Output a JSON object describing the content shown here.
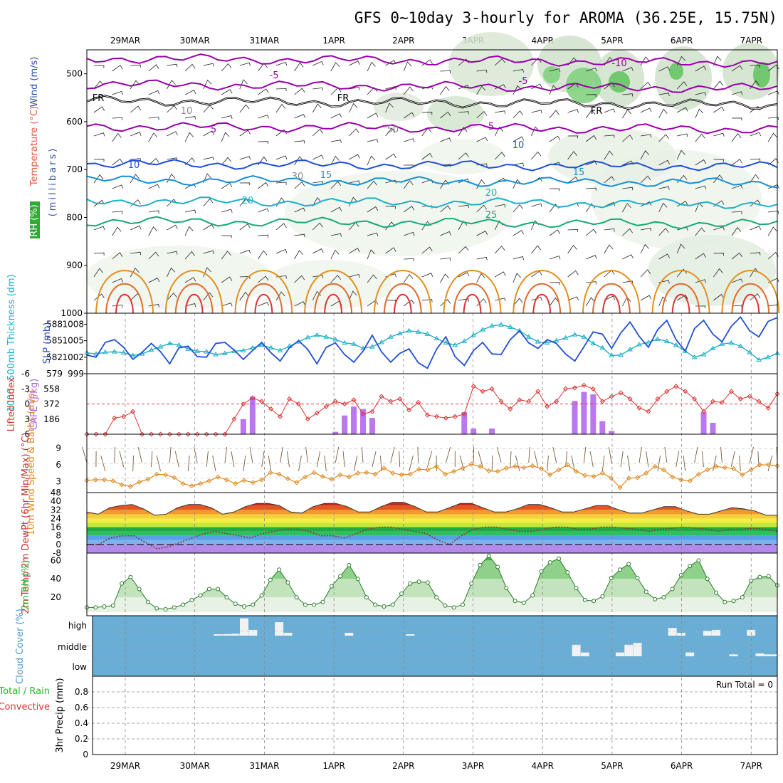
{
  "title": "GFS 0~10day 3-hourly for AROMA (36.25E, 15.75N)",
  "dates": [
    "29MAR",
    "30MAR",
    "31MAR",
    "1APR",
    "2APR",
    "3APR",
    "4APR",
    "5APR",
    "6APR",
    "7APR"
  ],
  "colors": {
    "purple": "#9900aa",
    "blue": "#1f4fd6",
    "cyan": "#1fb0c8",
    "teal": "#18a878",
    "orange": "#e09020",
    "red": "#dd3333",
    "green": "#22bb22",
    "cloud": "#6aadd5",
    "cape_bar": "#bb77ee",
    "wind_speed": "#e08a20",
    "rh_green": "#3dbb3d"
  },
  "chart_data": [
    {
      "type": "contour",
      "panel": "upper_air",
      "ylabel": "(millibars)",
      "legend_labels": [
        "RH (%)",
        "Temperature (°C)",
        "Wind (m/s)"
      ],
      "y_ticks": [
        500,
        600,
        700,
        800,
        900,
        1000
      ],
      "ylim": [
        1000,
        450
      ],
      "isotherms": [
        {
          "temp": -10,
          "pressure_mb": 468
        },
        {
          "temp": -5,
          "pressure_mb": 522
        },
        {
          "temp": 0,
          "pressure_mb": 556,
          "label": "FR"
        },
        {
          "temp": 5,
          "pressure_mb": 610
        },
        {
          "temp": 10,
          "pressure_mb": 688
        },
        {
          "temp": 15,
          "pressure_mb": 722
        },
        {
          "temp": 20,
          "pressure_mb": 766
        },
        {
          "temp": 25,
          "pressure_mb": 808
        }
      ],
      "contour_labels": [
        "-10",
        "-5",
        "5",
        "10",
        "15",
        "20",
        "25",
        "FR",
        "10",
        "30",
        "50"
      ]
    },
    {
      "type": "line",
      "panel": "slp_thickness",
      "ylabel_left": "1000~500mb Thickness (dm)",
      "ylabel_right": "SLP (mb)",
      "left_ticks": [
        579,
        582,
        585,
        588
      ],
      "right_ticks": [
        999,
        1002,
        1005,
        1008
      ],
      "ylim": [
        999,
        1010
      ],
      "series": [
        {
          "name": "SLP (mb)",
          "values": [
            1002.4,
            1002,
            1004.7,
            1005.2,
            1003.8,
            1001.6,
            1002.9,
            1004.5,
            1003,
            1000.8,
            1003.7,
            1004,
            1002.1,
            1002,
            1004.5,
            1004.7,
            1003.3,
            1001.6,
            1003.2,
            1004.7,
            1002.8,
            1001.3,
            1003.7,
            1005,
            1003.4,
            1000.8,
            1003.8,
            1004.6,
            1002.5,
            1001.1,
            1003.1,
            1006,
            1003,
            1001.1,
            1002.7,
            1003.5,
            1001,
            1000,
            1003.5,
            1005.7,
            1002.1,
            1000.5,
            1003.2,
            1004.7,
            1002.6,
            1002.5,
            1005.2,
            1006.8,
            1004.6,
            1003.6,
            1005.2,
            1004.5,
            1002.6,
            1001.3,
            1003.9,
            1006.6,
            1006.2,
            1003.6,
            1006.4,
            1008.4,
            1005.8,
            1003.8,
            1007,
            1008.7,
            1005.2,
            1003.1,
            1007.2,
            1008.7,
            1006.2,
            1004.8,
            1007.6,
            1009.3,
            1006.8,
            1005.7,
            1008.5,
            1009.2
          ]
        },
        {
          "name": "Thickness (dm)",
          "values": [
            582.8,
            582.6,
            582.9,
            583,
            582.8,
            582.3,
            582.6,
            583.3,
            583.9,
            584.5,
            584.2,
            583.5,
            583.1,
            583,
            582.5,
            582.7,
            583.1,
            583.2,
            583.7,
            584.2,
            583.7,
            583.2,
            584,
            584.8,
            585.6,
            586,
            585.7,
            585.2,
            584.6,
            584.4,
            583.6,
            583.9,
            584.7,
            585.7,
            586.3,
            586.8,
            586.6,
            586.2,
            585.4,
            584.6,
            584.2,
            584.9,
            586,
            587,
            587.7,
            587.9,
            587.5,
            586.8,
            585.7,
            584.8,
            584.6,
            585,
            585.5,
            586.1,
            585.7,
            584.5,
            583.7,
            582.3,
            582.4,
            583.4,
            584.3,
            584.7,
            585.3,
            584.9,
            584.2,
            583.1,
            582,
            582.5,
            583.6,
            584.4,
            584.6,
            584,
            582.9,
            581.5,
            582,
            582.7
          ]
        }
      ]
    },
    {
      "type": "bar+line",
      "panel": "cape_li",
      "ylabel_left": "Lifted Index",
      "ylabel_right": "CAPE (J/kg)",
      "li_ticks": [
        "-6",
        "-3",
        "0",
        "3",
        "6"
      ],
      "cape_ticks": [
        186,
        372,
        558
      ],
      "li_ylim": [
        -6,
        6
      ],
      "cape_ylim": [
        0,
        744
      ],
      "series": [
        {
          "name": "Lifted Index",
          "values": [
            6,
            6,
            6,
            2.8,
            2.5,
            1.5,
            6,
            6,
            6,
            6,
            6,
            6,
            6,
            6,
            6,
            6,
            3,
            0,
            -1.2,
            -0.5,
            1,
            2.5,
            -1,
            0,
            3,
            1.8,
            0.5,
            -0.5,
            0,
            -0.8,
            2,
            1.5,
            -1.5,
            -0.5,
            -1,
            1.2,
            -0.3,
            2.2,
            2.5,
            2.8,
            2.5,
            2,
            -3.5,
            -2.5,
            -3,
            -0.5,
            1,
            -0.8,
            -0.5,
            -2.5,
            0.5,
            -0.5,
            -3,
            -3.2,
            -3.7,
            -3,
            -0.5,
            -1.5,
            -2.2,
            -1,
            0.8,
            1.5,
            -1,
            -2.5,
            -3.5,
            -2.5,
            -1,
            1.5,
            -0.5,
            -0.3,
            -2.5,
            -1,
            -1.5,
            -0.5,
            0.8,
            -2
          ]
        },
        {
          "name": "CAPE (J/kg)",
          "values": [
            0,
            0,
            0,
            0,
            0,
            0,
            0,
            0,
            0,
            0,
            0,
            0,
            0,
            0,
            0,
            0,
            0,
            186,
            460,
            0,
            0,
            0,
            0,
            0,
            0,
            0,
            0,
            30,
            230,
            340,
            310,
            200,
            0,
            0,
            0,
            0,
            0,
            0,
            0,
            0,
            0,
            270,
            70,
            0,
            70,
            0,
            0,
            0,
            0,
            0,
            0,
            0,
            0,
            410,
            520,
            490,
            160,
            40,
            0,
            0,
            0,
            0,
            0,
            0,
            0,
            0,
            0,
            270,
            140,
            0,
            0,
            0,
            0,
            0,
            0,
            0
          ]
        }
      ]
    },
    {
      "type": "line",
      "panel": "wind10m",
      "ylabel": "10m Wind Speed & Barbs (m/s)",
      "y_ticks": [
        3,
        6,
        9
      ],
      "ylim": [
        1,
        11.5
      ],
      "series": [
        {
          "name": "10m Wind Speed (m/s)",
          "values": [
            3.2,
            3.3,
            3.3,
            3.1,
            2.4,
            2.1,
            2.9,
            3.4,
            4.3,
            4.2,
            3.7,
            2.6,
            2.2,
            2.6,
            3.1,
            3.8,
            3.3,
            2.6,
            3.2,
            2.8,
            3.3,
            4.6,
            4.3,
            3.5,
            2.8,
            3.8,
            4.6,
            3.9,
            3.4,
            4.2,
            3.8,
            4.5,
            4.6,
            4.3,
            5.4,
            4.5,
            4.2,
            4.3,
            5.2,
            5.1,
            5.7,
            4.3,
            4.8,
            5.4,
            6.1,
            5.7,
            4.9,
            4.8,
            5.4,
            5.7,
            5.5,
            5.8,
            5.3,
            4.2,
            5.1,
            6,
            4.8,
            4.1,
            3.9,
            4.5,
            3.6,
            1.9,
            3.6,
            3.7,
            4.5,
            5.7,
            5.1,
            3.8,
            3.3,
            3.1,
            4.3,
            5.1,
            5.7,
            5.5,
            5.3,
            4.2,
            5.1,
            6,
            6,
            5.8
          ]
        }
      ]
    },
    {
      "type": "line",
      "panel": "temp2m",
      "ylabel": "2m Temp 2m DewPt (6hr Min/Max) (°C)",
      "y_ticks": [
        -8,
        0,
        8,
        16,
        24,
        32,
        40,
        48
      ],
      "ylim": [
        -8,
        48
      ],
      "series": [
        {
          "name": "2m Temp (°C)",
          "values": [
            30,
            28,
            34,
            36,
            37,
            33,
            27,
            28,
            34,
            37,
            37,
            34,
            28,
            30,
            35,
            38,
            38,
            36,
            30,
            29,
            35,
            38,
            38,
            35,
            30,
            30,
            35,
            39,
            39,
            35,
            30,
            30,
            34,
            38,
            38,
            34,
            30,
            30,
            33,
            37,
            37,
            34,
            30,
            30,
            33,
            36,
            36,
            32,
            29,
            29,
            32,
            35,
            35,
            31,
            28,
            28,
            31,
            34,
            33,
            31,
            27,
            27
          ]
        },
        {
          "name": "2m DewPt (°C)",
          "values": [
            0,
            0,
            6,
            8,
            8,
            2,
            -4,
            -2,
            2,
            6,
            10,
            12,
            10,
            8,
            6,
            10,
            12,
            14,
            14,
            12,
            8,
            8,
            6,
            10,
            14,
            16,
            16,
            14,
            12,
            10,
            4,
            0,
            8,
            14,
            16,
            16,
            14,
            12,
            12,
            14,
            16,
            16,
            14,
            14,
            16,
            16,
            15,
            14,
            12,
            14,
            15,
            16,
            15,
            14,
            12,
            14,
            14,
            15,
            14,
            12
          ]
        }
      ]
    },
    {
      "type": "area",
      "panel": "rh2m",
      "ylabel": "2m RH (%)",
      "y_ticks": [
        20,
        40,
        60
      ],
      "ylim": [
        0,
        68
      ],
      "series": [
        {
          "name": "2m RH (%)",
          "values": [
            9,
            9,
            10,
            11,
            35,
            42,
            29,
            15,
            8,
            7,
            9,
            12,
            17,
            22,
            29,
            29,
            20,
            13,
            10,
            12,
            22,
            39,
            50,
            36,
            20,
            12,
            12,
            15,
            32,
            43,
            55,
            40,
            20,
            12,
            10,
            12,
            24,
            35,
            37,
            36,
            20,
            11,
            9,
            12,
            35,
            55,
            65,
            53,
            30,
            16,
            14,
            22,
            48,
            58,
            62,
            47,
            30,
            17,
            16,
            21,
            41,
            50,
            56,
            41,
            26,
            18,
            20,
            29,
            44,
            54,
            60,
            40,
            25,
            15,
            16,
            20,
            38,
            42,
            43,
            33
          ]
        }
      ]
    },
    {
      "type": "heatmap",
      "panel": "cloud",
      "ylabel": "Cloud Cover (%)",
      "y_labels": [
        "high",
        "middle",
        "low"
      ],
      "levels": [
        "low",
        "middle",
        "high"
      ],
      "values": [
        [
          0,
          0,
          0
        ],
        [
          0,
          0,
          0
        ],
        [
          0,
          0,
          0
        ],
        [
          0,
          0,
          0
        ],
        [
          0,
          0,
          0
        ],
        [
          0,
          0,
          0
        ],
        [
          0,
          0,
          0
        ],
        [
          0,
          0,
          0
        ],
        [
          0,
          0,
          0
        ],
        [
          0,
          0,
          0
        ],
        [
          0,
          0,
          0
        ],
        [
          0,
          0,
          0
        ],
        [
          0,
          0,
          0
        ],
        [
          0,
          0,
          0
        ],
        [
          0,
          0,
          0
        ],
        [
          0,
          0,
          2
        ],
        [
          0,
          0,
          8
        ],
        [
          0,
          0,
          10
        ],
        [
          0,
          0,
          90
        ],
        [
          0,
          0,
          30
        ],
        [
          0,
          0,
          0
        ],
        [
          0,
          0,
          0
        ],
        [
          0,
          0,
          70
        ],
        [
          0,
          0,
          15
        ],
        [
          0,
          0,
          0
        ],
        [
          0,
          0,
          0
        ],
        [
          0,
          0,
          0
        ],
        [
          0,
          0,
          0
        ],
        [
          0,
          0,
          0
        ],
        [
          0,
          0,
          0
        ],
        [
          0,
          0,
          15
        ],
        [
          0,
          0,
          0
        ],
        [
          0,
          0,
          0
        ],
        [
          0,
          0,
          0
        ],
        [
          0,
          0,
          0
        ],
        [
          0,
          0,
          0
        ],
        [
          0,
          0,
          0
        ],
        [
          0,
          0,
          5
        ],
        [
          0,
          0,
          0
        ],
        [
          0,
          0,
          0
        ],
        [
          0,
          0,
          0
        ],
        [
          0,
          0,
          0
        ],
        [
          0,
          0,
          0
        ],
        [
          0,
          0,
          0
        ],
        [
          0,
          0,
          0
        ],
        [
          0,
          0,
          0
        ],
        [
          0,
          0,
          0
        ],
        [
          0,
          0,
          0
        ],
        [
          0,
          0,
          0
        ],
        [
          0,
          0,
          0
        ],
        [
          0,
          0,
          0
        ],
        [
          0,
          0,
          0
        ],
        [
          0,
          0,
          0
        ],
        [
          0,
          0,
          0
        ],
        [
          0,
          0,
          0
        ],
        [
          0,
          0,
          0
        ],
        [
          0,
          60,
          0
        ],
        [
          0,
          20,
          0
        ],
        [
          0,
          0,
          0
        ],
        [
          0,
          0,
          0
        ],
        [
          0,
          0,
          0
        ],
        [
          0,
          20,
          0
        ],
        [
          0,
          60,
          0
        ],
        [
          0,
          70,
          0
        ],
        [
          0,
          0,
          0
        ],
        [
          0,
          0,
          0
        ],
        [
          0,
          0,
          0
        ],
        [
          0,
          0,
          40
        ],
        [
          0,
          0,
          15
        ],
        [
          0,
          20,
          0
        ],
        [
          0,
          0,
          0
        ],
        [
          0,
          0,
          25
        ],
        [
          0,
          0,
          30
        ],
        [
          0,
          0,
          0
        ],
        [
          0,
          10,
          0
        ],
        [
          0,
          0,
          0
        ],
        [
          0,
          0,
          30
        ],
        [
          0,
          15,
          0
        ],
        [
          0,
          10,
          0
        ],
        [
          0,
          10,
          0
        ]
      ]
    },
    {
      "type": "bar",
      "panel": "precip",
      "ylabel": "3hr Precip (mm)",
      "legend_labels": [
        "Total / Rain",
        "Convective"
      ],
      "y_ticks": [
        0,
        0.2,
        0.4,
        0.6,
        0.8
      ],
      "ylim": [
        0,
        1
      ],
      "annotation": "Run Total = 0",
      "values": []
    }
  ]
}
